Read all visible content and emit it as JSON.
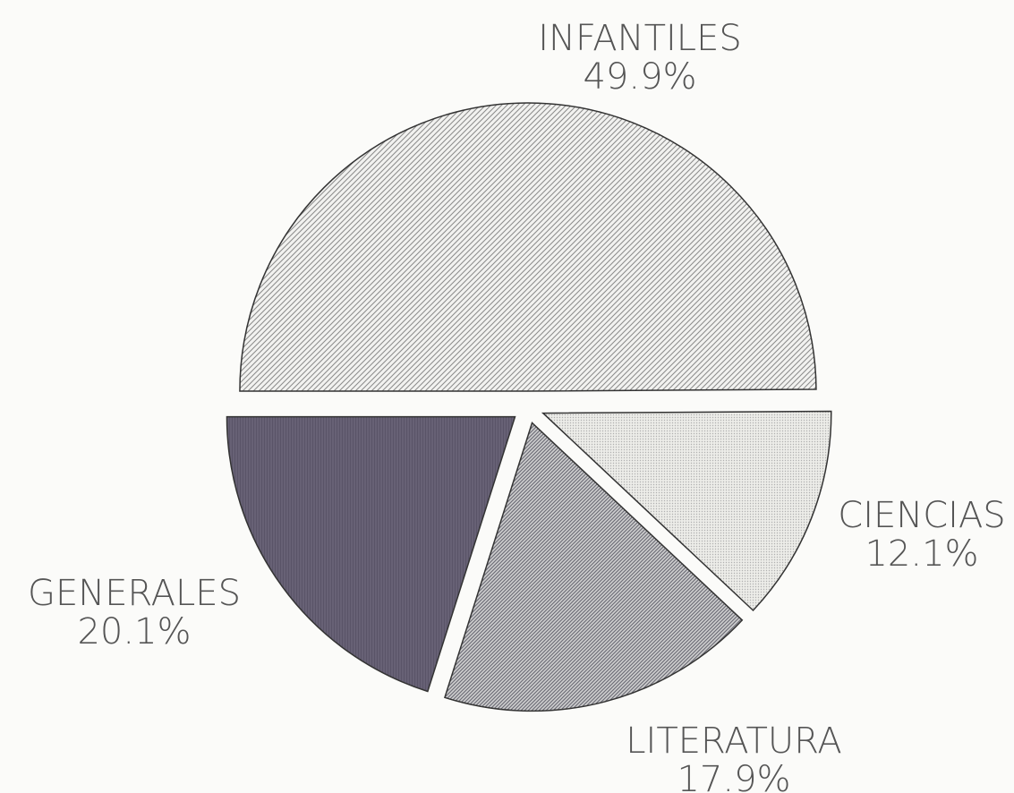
{
  "chart_data": {
    "type": "pie",
    "categories": [
      "INFANTILES",
      "CIENCIAS",
      "LITERATURA",
      "GENERALES"
    ],
    "values": [
      49.9,
      12.1,
      17.9,
      20.1
    ],
    "value_labels": [
      "49.9%",
      "12.1%",
      "17.9%",
      "20.1%"
    ],
    "colors": [
      "#8a8a8a",
      "#b0b0b0",
      "#6e6e78",
      "#5a5468"
    ]
  }
}
